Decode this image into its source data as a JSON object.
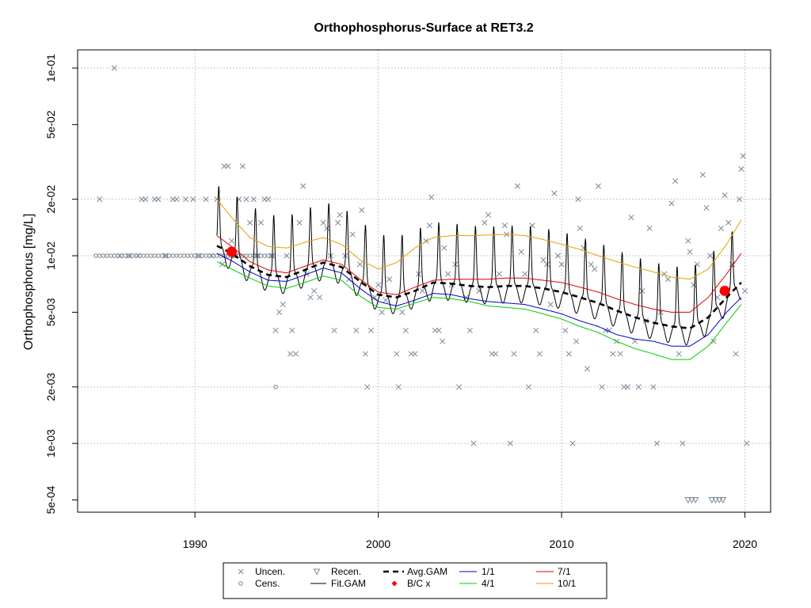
{
  "chart_data": {
    "type": "scatter",
    "title": "Orthophosphorus-Surface at RET3.2",
    "xlabel": "",
    "ylabel": "Orthophosphorus [mg/L]",
    "y_scale": "log",
    "xlim": [
      1983.6,
      2021.4
    ],
    "ylim": [
      0.00043,
      0.125
    ],
    "x_ticks": [
      1990,
      2000,
      2010,
      2020
    ],
    "x_tick_labels": [
      "1990",
      "2000",
      "2010",
      "2020"
    ],
    "y_ticks": [
      0.1,
      0.05,
      0.02,
      0.01,
      0.005,
      0.002,
      0.001,
      0.0005
    ],
    "y_tick_labels": [
      "1e-01",
      "5e-02",
      "2e-02",
      "1e-02",
      "5e-03",
      "2e-03",
      "1e-03",
      "5e-04"
    ],
    "grid": true,
    "legend_position": "bottom",
    "legend": [
      {
        "key": "uncen",
        "label": "Uncen."
      },
      {
        "key": "cens",
        "label": "Cens."
      },
      {
        "key": "recen",
        "label": "Recen."
      },
      {
        "key": "fitgam",
        "label": "Fit.GAM"
      },
      {
        "key": "avggam",
        "label": "Avg.GAM"
      },
      {
        "key": "bcx",
        "label": "B/C x"
      },
      {
        "key": "d11",
        "label": "1/1"
      },
      {
        "key": "d41",
        "label": "4/1"
      },
      {
        "key": "d71",
        "label": "7/1"
      },
      {
        "key": "d101",
        "label": "10/1"
      }
    ],
    "colors": {
      "points": "#7a8896",
      "fit": "#000000",
      "avg": "#000000",
      "bc": "#ff0000",
      "d11": "#0000cc",
      "d41": "#00cc00",
      "d71": "#dd0000",
      "d101": "#e69f00",
      "grid": "#c8c8c8"
    },
    "uncensored_points": [
      [
        1984.8,
        0.02
      ],
      [
        1985.6,
        0.1
      ],
      [
        1985.9,
        0.01
      ],
      [
        1986.4,
        0.01
      ],
      [
        1986.9,
        0.01
      ],
      [
        1987.1,
        0.02
      ],
      [
        1987.3,
        0.02
      ],
      [
        1987.8,
        0.02
      ],
      [
        1988.0,
        0.02
      ],
      [
        1988.4,
        0.01
      ],
      [
        1988.8,
        0.02
      ],
      [
        1989.0,
        0.02
      ],
      [
        1989.5,
        0.02
      ],
      [
        1989.9,
        0.02
      ],
      [
        1990.2,
        0.01
      ],
      [
        1990.6,
        0.02
      ],
      [
        1990.9,
        0.01
      ],
      [
        1991.2,
        0.02
      ],
      [
        1991.5,
        0.009
      ],
      [
        1991.6,
        0.03
      ],
      [
        1991.8,
        0.03
      ],
      [
        1992.0,
        0.012
      ],
      [
        1992.2,
        0.01
      ],
      [
        1992.4,
        0.02
      ],
      [
        1992.6,
        0.03
      ],
      [
        1992.8,
        0.02
      ],
      [
        1993.0,
        0.015
      ],
      [
        1993.2,
        0.02
      ],
      [
        1993.4,
        0.01
      ],
      [
        1993.6,
        0.015
      ],
      [
        1993.8,
        0.02
      ],
      [
        1994.0,
        0.02
      ],
      [
        1994.2,
        0.01
      ],
      [
        1994.4,
        0.004
      ],
      [
        1994.6,
        0.005
      ],
      [
        1994.8,
        0.0055
      ],
      [
        1995.0,
        0.01
      ],
      [
        1995.2,
        0.003
      ],
      [
        1995.3,
        0.004
      ],
      [
        1995.5,
        0.003
      ],
      [
        1995.7,
        0.015
      ],
      [
        1995.9,
        0.0235
      ],
      [
        1996.1,
        0.008
      ],
      [
        1996.3,
        0.006
      ],
      [
        1996.5,
        0.0065
      ],
      [
        1996.8,
        0.006
      ],
      [
        1997.0,
        0.015
      ],
      [
        1997.2,
        0.014
      ],
      [
        1997.4,
        0.01
      ],
      [
        1997.6,
        0.004
      ],
      [
        1997.8,
        0.015
      ],
      [
        1997.9,
        0.0165
      ],
      [
        1998.2,
        0.01
      ],
      [
        1998.4,
        0.0075
      ],
      [
        1998.6,
        0.013
      ],
      [
        1998.8,
        0.004
      ],
      [
        1999.0,
        0.009
      ],
      [
        1999.1,
        0.0175
      ],
      [
        1999.3,
        0.003
      ],
      [
        1999.4,
        0.002
      ],
      [
        1999.6,
        0.004
      ],
      [
        1999.8,
        0.006
      ],
      [
        2000.0,
        0.007
      ],
      [
        2000.2,
        0.005
      ],
      [
        2000.4,
        0.0058
      ],
      [
        2000.6,
        0.0075
      ],
      [
        2001.0,
        0.003
      ],
      [
        2001.1,
        0.002
      ],
      [
        2001.3,
        0.005
      ],
      [
        2001.5,
        0.004
      ],
      [
        2001.8,
        0.003
      ],
      [
        2002.0,
        0.003
      ],
      [
        2002.2,
        0.008
      ],
      [
        2002.4,
        0.0065
      ],
      [
        2002.6,
        0.012
      ],
      [
        2002.8,
        0.0145
      ],
      [
        2002.9,
        0.0205
      ],
      [
        2003.1,
        0.004
      ],
      [
        2003.3,
        0.004
      ],
      [
        2003.5,
        0.0035
      ],
      [
        2003.6,
        0.011
      ],
      [
        2003.8,
        0.008
      ],
      [
        2004.0,
        0.007
      ],
      [
        2004.2,
        0.009
      ],
      [
        2004.4,
        0.002
      ],
      [
        2004.8,
        0.006
      ],
      [
        2005.0,
        0.004
      ],
      [
        2005.2,
        0.001
      ],
      [
        2005.5,
        0.0065
      ],
      [
        2005.8,
        0.015
      ],
      [
        2006.0,
        0.0165
      ],
      [
        2006.2,
        0.003
      ],
      [
        2006.4,
        0.003
      ],
      [
        2006.6,
        0.008
      ],
      [
        2006.9,
        0.0145
      ],
      [
        2007.0,
        0.013
      ],
      [
        2007.2,
        0.001
      ],
      [
        2007.4,
        0.003
      ],
      [
        2007.6,
        0.0235
      ],
      [
        2007.8,
        0.0105
      ],
      [
        2008.0,
        0.008
      ],
      [
        2008.2,
        0.002
      ],
      [
        2008.4,
        0.0145
      ],
      [
        2008.6,
        0.004
      ],
      [
        2008.8,
        0.003
      ],
      [
        2009.0,
        0.0095
      ],
      [
        2009.2,
        0.009
      ],
      [
        2009.4,
        0.0055
      ],
      [
        2009.6,
        0.0215
      ],
      [
        2009.8,
        0.01
      ],
      [
        2010.0,
        0.009
      ],
      [
        2010.2,
        0.004
      ],
      [
        2010.4,
        0.003
      ],
      [
        2010.6,
        0.001
      ],
      [
        2010.8,
        0.0035
      ],
      [
        2010.9,
        0.02
      ],
      [
        2011.0,
        0.014
      ],
      [
        2011.2,
        0.011
      ],
      [
        2011.4,
        0.0025
      ],
      [
        2011.6,
        0.009
      ],
      [
        2011.8,
        0.0085
      ],
      [
        2012.0,
        0.0235
      ],
      [
        2012.2,
        0.002
      ],
      [
        2012.4,
        0.004
      ],
      [
        2012.6,
        0.004
      ],
      [
        2012.8,
        0.003
      ],
      [
        2013.0,
        0.0035
      ],
      [
        2013.2,
        0.003
      ],
      [
        2013.4,
        0.002
      ],
      [
        2013.6,
        0.002
      ],
      [
        2013.8,
        0.016
      ],
      [
        2014.0,
        0.0035
      ],
      [
        2014.2,
        0.002
      ],
      [
        2014.4,
        0.0065
      ],
      [
        2014.6,
        0.0045
      ],
      [
        2014.8,
        0.014
      ],
      [
        2015.0,
        0.002
      ],
      [
        2015.2,
        0.001
      ],
      [
        2015.4,
        0.005
      ],
      [
        2015.6,
        0.008
      ],
      [
        2015.8,
        0.0075
      ],
      [
        2016.0,
        0.019
      ],
      [
        2016.2,
        0.025
      ],
      [
        2016.4,
        0.003
      ],
      [
        2016.6,
        0.001
      ],
      [
        2016.9,
        0.012
      ],
      [
        2017.0,
        0.0105
      ],
      [
        2017.2,
        0.007
      ],
      [
        2017.4,
        0.009
      ],
      [
        2017.7,
        0.027
      ],
      [
        2017.9,
        0.018
      ],
      [
        2018.1,
        0.01
      ],
      [
        2018.3,
        0.0035
      ],
      [
        2018.5,
        0.006
      ],
      [
        2018.7,
        0.014
      ],
      [
        2018.9,
        0.021
      ],
      [
        2019.1,
        0.015
      ],
      [
        2019.3,
        0.009
      ],
      [
        2019.5,
        0.003
      ],
      [
        2019.7,
        0.02
      ],
      [
        2019.8,
        0.029
      ],
      [
        2019.9,
        0.034
      ],
      [
        2020.0,
        0.0065
      ],
      [
        2020.1,
        0.001
      ]
    ],
    "censored_points": [
      [
        1984.6,
        0.01
      ],
      [
        1984.8,
        0.01
      ],
      [
        1985.0,
        0.01
      ],
      [
        1985.2,
        0.01
      ],
      [
        1985.4,
        0.01
      ],
      [
        1985.6,
        0.01
      ],
      [
        1985.8,
        0.01
      ],
      [
        1986.0,
        0.01
      ],
      [
        1986.2,
        0.01
      ],
      [
        1986.4,
        0.01
      ],
      [
        1986.6,
        0.01
      ],
      [
        1986.8,
        0.01
      ],
      [
        1987.0,
        0.01
      ],
      [
        1987.2,
        0.01
      ],
      [
        1987.4,
        0.01
      ],
      [
        1987.6,
        0.01
      ],
      [
        1987.8,
        0.01
      ],
      [
        1988.0,
        0.01
      ],
      [
        1988.2,
        0.01
      ],
      [
        1988.4,
        0.01
      ],
      [
        1988.6,
        0.01
      ],
      [
        1988.8,
        0.01
      ],
      [
        1989.0,
        0.01
      ],
      [
        1989.2,
        0.01
      ],
      [
        1989.4,
        0.01
      ],
      [
        1989.6,
        0.01
      ],
      [
        1989.8,
        0.01
      ],
      [
        1990.0,
        0.01
      ],
      [
        1990.2,
        0.01
      ],
      [
        1990.4,
        0.01
      ],
      [
        1990.6,
        0.01
      ],
      [
        1990.8,
        0.01
      ],
      [
        1991.0,
        0.01
      ],
      [
        1991.2,
        0.01
      ],
      [
        1991.4,
        0.01
      ],
      [
        1991.6,
        0.01
      ],
      [
        1991.8,
        0.01
      ],
      [
        1992.0,
        0.01
      ],
      [
        1992.2,
        0.01
      ],
      [
        1992.4,
        0.01
      ],
      [
        1992.6,
        0.01
      ],
      [
        1992.8,
        0.01
      ],
      [
        1993.0,
        0.01
      ],
      [
        1993.2,
        0.01
      ],
      [
        1993.4,
        0.01
      ],
      [
        1993.6,
        0.01
      ],
      [
        1993.8,
        0.01
      ],
      [
        1994.0,
        0.01
      ],
      [
        1994.2,
        0.01
      ],
      [
        1994.4,
        0.002
      ]
    ],
    "recensored_points": [
      [
        2016.9,
        0.0005
      ],
      [
        2017.1,
        0.0005
      ],
      [
        2017.3,
        0.0005
      ],
      [
        2018.2,
        0.0005
      ],
      [
        2018.4,
        0.0005
      ],
      [
        2018.6,
        0.0005
      ],
      [
        2018.8,
        0.0005
      ]
    ],
    "avg_gam": {
      "x": [
        1991.2,
        1992,
        1993,
        1994,
        1995,
        1996,
        1997,
        1998,
        1999,
        2000,
        2001,
        2002,
        2003,
        2004,
        2005,
        2006,
        2007,
        2008,
        2009,
        2010,
        2011,
        2012,
        2013,
        2014,
        2015,
        2016,
        2017,
        2018,
        2019,
        2019.8
      ],
      "y": [
        0.0113,
        0.0103,
        0.0088,
        0.0079,
        0.0077,
        0.0084,
        0.0092,
        0.0087,
        0.0073,
        0.0062,
        0.006,
        0.0065,
        0.0072,
        0.0071,
        0.0069,
        0.0068,
        0.0069,
        0.0069,
        0.0067,
        0.0064,
        0.006,
        0.0056,
        0.0051,
        0.0047,
        0.0044,
        0.0042,
        0.0041,
        0.0047,
        0.006,
        0.0072
      ]
    },
    "fit_gam": {
      "x_start": 1991.2,
      "x_end": 2019.8,
      "seasonal_amplitude": 0.55,
      "peak_phase": 0.3
    },
    "bc_points": [
      [
        1992.0,
        0.0105
      ],
      [
        2018.9,
        0.0065
      ]
    ],
    "series": [
      {
        "key": "d11",
        "name": "1/1",
        "x": [
          1991.2,
          1992,
          1993,
          1994,
          1995,
          1996,
          1997,
          1998,
          1999,
          2000,
          2001,
          2002,
          2003,
          2004,
          2005,
          2006,
          2007,
          2008,
          2009,
          2010,
          2011,
          2012,
          2013,
          2014,
          2015,
          2016,
          2017,
          2018,
          2019,
          2019.8
        ],
        "y": [
          0.0103,
          0.0094,
          0.0082,
          0.0074,
          0.0073,
          0.0079,
          0.0086,
          0.0081,
          0.0067,
          0.0057,
          0.0054,
          0.0058,
          0.0063,
          0.0062,
          0.0059,
          0.0057,
          0.0056,
          0.0055,
          0.0052,
          0.0049,
          0.0045,
          0.0042,
          0.0038,
          0.0036,
          0.0035,
          0.0033,
          0.0033,
          0.0038,
          0.005,
          0.006
        ]
      },
      {
        "key": "d41",
        "name": "4/1",
        "x": [
          1991.2,
          1992,
          1993,
          1994,
          1995,
          1996,
          1997,
          1998,
          1999,
          2000,
          2001,
          2002,
          2003,
          2004,
          2005,
          2006,
          2007,
          2008,
          2009,
          2010,
          2011,
          2012,
          2013,
          2014,
          2015,
          2016,
          2017,
          2018,
          2019,
          2019.8
        ],
        "y": [
          0.0093,
          0.0085,
          0.0076,
          0.0069,
          0.0067,
          0.0072,
          0.0078,
          0.0074,
          0.0061,
          0.0053,
          0.0052,
          0.0056,
          0.006,
          0.0059,
          0.0057,
          0.0054,
          0.0053,
          0.0052,
          0.0049,
          0.0046,
          0.0042,
          0.0039,
          0.0035,
          0.0032,
          0.003,
          0.0028,
          0.0028,
          0.0033,
          0.0044,
          0.0055
        ]
      },
      {
        "key": "d71",
        "name": "7/1",
        "x": [
          1991.2,
          1992,
          1993,
          1994,
          1995,
          1996,
          1997,
          1998,
          1999,
          2000,
          2001,
          2002,
          2003,
          2004,
          2005,
          2006,
          2007,
          2008,
          2009,
          2010,
          2011,
          2012,
          2013,
          2014,
          2015,
          2016,
          2017,
          2018,
          2019,
          2019.8
        ],
        "y": [
          0.0128,
          0.0112,
          0.0093,
          0.0084,
          0.0081,
          0.0088,
          0.0095,
          0.009,
          0.0075,
          0.0064,
          0.0062,
          0.0068,
          0.0074,
          0.0075,
          0.0075,
          0.0075,
          0.0076,
          0.0076,
          0.0074,
          0.0072,
          0.0068,
          0.0064,
          0.0059,
          0.0055,
          0.0052,
          0.005,
          0.005,
          0.006,
          0.008,
          0.0103
        ]
      },
      {
        "key": "d101",
        "name": "10/1",
        "x": [
          1991.2,
          1992,
          1993,
          1994,
          1995,
          1996,
          1997,
          1998,
          1999,
          2000,
          2001,
          2002,
          2003,
          2004,
          2005,
          2006,
          2007,
          2008,
          2009,
          2010,
          2011,
          2012,
          2013,
          2014,
          2015,
          2016,
          2017,
          2018,
          2019,
          2019.8
        ],
        "y": [
          0.02,
          0.016,
          0.0125,
          0.0112,
          0.011,
          0.0118,
          0.0125,
          0.0115,
          0.0095,
          0.0085,
          0.0092,
          0.011,
          0.0125,
          0.0128,
          0.0128,
          0.0129,
          0.013,
          0.0128,
          0.0122,
          0.0115,
          0.0108,
          0.01,
          0.0093,
          0.0087,
          0.0082,
          0.0077,
          0.0075,
          0.0085,
          0.0115,
          0.0155
        ]
      }
    ]
  }
}
